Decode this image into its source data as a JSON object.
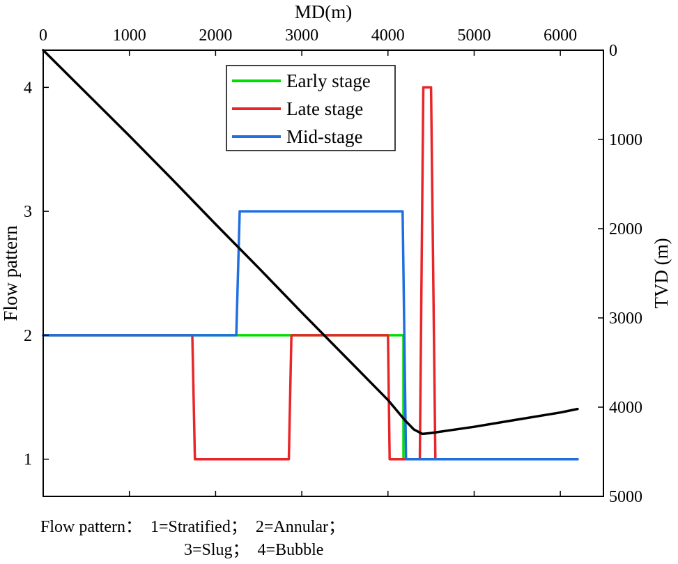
{
  "chart_data": {
    "type": "line",
    "title": "",
    "x_axis": {
      "label": "MD(m)",
      "position": "top",
      "range": [
        0,
        6500
      ],
      "ticks": [
        0,
        1000,
        2000,
        3000,
        4000,
        5000,
        6000
      ]
    },
    "y_axis_left": {
      "label": "Flow pattern",
      "range": [
        0.7,
        4.3
      ],
      "ticks": [
        1,
        2,
        3,
        4
      ]
    },
    "y_axis_right": {
      "label": "TVD (m)",
      "range": [
        0,
        5000
      ],
      "ticks": [
        0,
        1000,
        2000,
        3000,
        4000,
        5000
      ],
      "inverted": true
    },
    "legend": {
      "placement": "top-center",
      "entries": [
        {
          "name": "Early stage",
          "color": "#00e000"
        },
        {
          "name": "Late stage",
          "color": "#e8262a"
        },
        {
          "name": "Mid-stage",
          "color": "#1f6fe0"
        }
      ]
    },
    "series": [
      {
        "name": "Early stage",
        "axis": "left",
        "color": "#00e000",
        "x": [
          0,
          2250,
          4180,
          4180,
          6200
        ],
        "y": [
          2,
          2,
          2,
          1,
          1
        ]
      },
      {
        "name": "Late stage",
        "axis": "left",
        "color": "#e8262a",
        "x": [
          0,
          1730,
          1760,
          2850,
          2880,
          4000,
          4020,
          4200,
          4220,
          4370,
          4410,
          4500,
          4550,
          6200
        ],
        "y": [
          2,
          2,
          1,
          1,
          2,
          2,
          1,
          1,
          1,
          1,
          4,
          4,
          1,
          1
        ]
      },
      {
        "name": "Mid-stage",
        "axis": "left",
        "color": "#1f6fe0",
        "x": [
          0,
          2240,
          2280,
          4170,
          4210,
          6200
        ],
        "y": [
          2,
          2,
          3,
          3,
          1,
          1
        ]
      },
      {
        "name": "TVD trajectory",
        "axis": "right",
        "color": "#000000",
        "x": [
          0,
          500,
          1000,
          1500,
          2000,
          2500,
          3000,
          3500,
          4000,
          4200,
          4300,
          4400,
          4500,
          5000,
          5500,
          6000,
          6200
        ],
        "y": [
          0,
          480,
          960,
          1450,
          1950,
          2440,
          2940,
          3430,
          3920,
          4150,
          4250,
          4300,
          4290,
          4220,
          4140,
          4060,
          4020
        ]
      }
    ]
  },
  "caption": {
    "line1": "Flow pattern：  1=Stratified；  2=Annular；",
    "line2": "3=Slug；  4=Bubble"
  }
}
